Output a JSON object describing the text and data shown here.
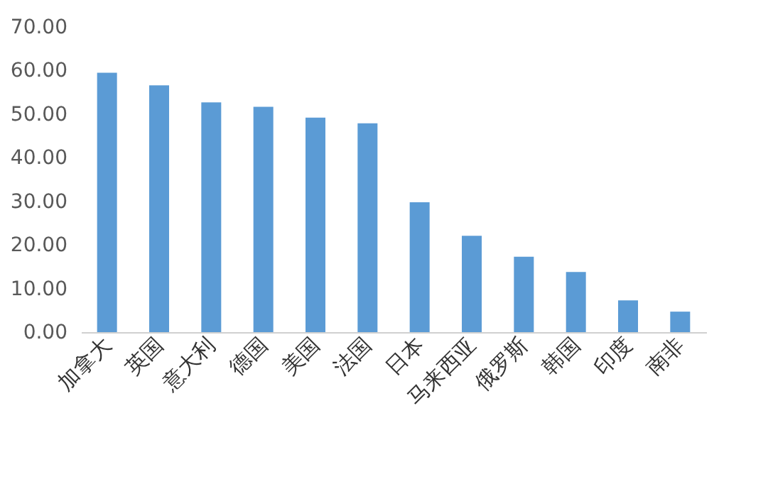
{
  "chart_data": {
    "type": "bar",
    "categories": [
      "加拿大",
      "英国",
      "意大利",
      "德国",
      "美国",
      "法国",
      "日本",
      "马来西亚",
      "俄罗斯",
      "韩国",
      "印度",
      "南非"
    ],
    "values": [
      59.5,
      56.6,
      52.7,
      51.7,
      49.2,
      47.9,
      29.8,
      22.1,
      17.3,
      13.8,
      7.3,
      4.7
    ],
    "color": "#5b9bd5",
    "ylim": [
      0,
      70
    ],
    "yticks": [
      {
        "value": 0,
        "label": "0.00"
      },
      {
        "value": 10,
        "label": "10.00"
      },
      {
        "value": 20,
        "label": "20.00"
      },
      {
        "value": 30,
        "label": "30.00"
      },
      {
        "value": 40,
        "label": "40.00"
      },
      {
        "value": 50,
        "label": "50.00"
      },
      {
        "value": 60,
        "label": "60.00"
      },
      {
        "value": 70,
        "label": "70.00"
      }
    ],
    "grid": false
  }
}
